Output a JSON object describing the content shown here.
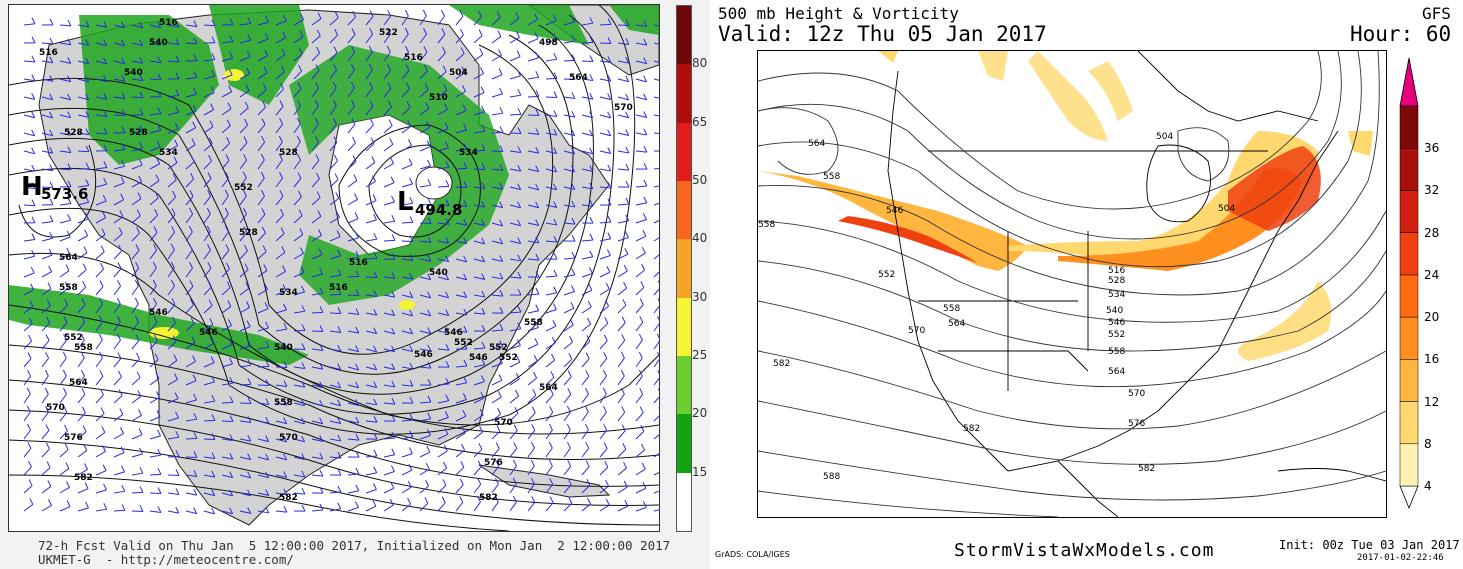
{
  "left_panel": {
    "colorbar": {
      "levels": [
        15,
        20,
        25,
        30,
        40,
        50,
        65,
        80
      ],
      "colors": [
        "#ffffff",
        "#11a311",
        "#6ccf2f",
        "#f4f432",
        "#f7a326",
        "#f7661d",
        "#e31c1c",
        "#b10c0c",
        "#6e0808"
      ]
    },
    "highs_lows": [
      {
        "symbol": "H",
        "value": "573.6"
      },
      {
        "symbol": "L",
        "value": "494.8"
      }
    ],
    "contour_labels": [
      "516",
      "540",
      "516",
      "528",
      "540",
      "534",
      "552",
      "528",
      "516",
      "534",
      "546",
      "564",
      "558",
      "552",
      "546",
      "558",
      "564",
      "570",
      "576",
      "582",
      "552",
      "540",
      "546",
      "552",
      "558",
      "564",
      "570",
      "576",
      "582",
      "582",
      "546",
      "570",
      "558",
      "528",
      "528",
      "516",
      "510",
      "522",
      "504",
      "498",
      "534",
      "540",
      "546",
      "552",
      "516",
      "564",
      "570"
    ],
    "footer_line1": "72-h Fcst Valid on Thu Jan  5 12:00:00 2017, Initialized on Mon Jan  2 12:00:00 2017",
    "footer_line2": "UKMET-G  - http://meteocentre.com/"
  },
  "right_panel": {
    "title": "500 mb Height & Vorticity",
    "model": "GFS",
    "valid": "Valid: 12z Thu 05 Jan 2017",
    "hour": "Hour: 60",
    "colorbar": {
      "levels": [
        4,
        8,
        12,
        16,
        20,
        24,
        28,
        32,
        36
      ],
      "colors": [
        "#fff2b0",
        "#ffd970",
        "#ffb640",
        "#ff9020",
        "#ff6a10",
        "#f04010",
        "#d42010",
        "#a8100c",
        "#800808",
        "#e6007e"
      ]
    },
    "contour_labels": [
      "564",
      "558",
      "546",
      "558",
      "552",
      "558",
      "564",
      "570",
      "582",
      "582",
      "588",
      "504",
      "504",
      "516",
      "528",
      "534",
      "540",
      "546",
      "552",
      "558",
      "564",
      "570",
      "576",
      "582"
    ],
    "grads_credit": "GrADS: COLA/IGES",
    "site": "StormVistaWxModels.com",
    "init": "Init: 00z Tue 03 Jan 2017",
    "timestamp": "2017-01-02-22:46"
  }
}
